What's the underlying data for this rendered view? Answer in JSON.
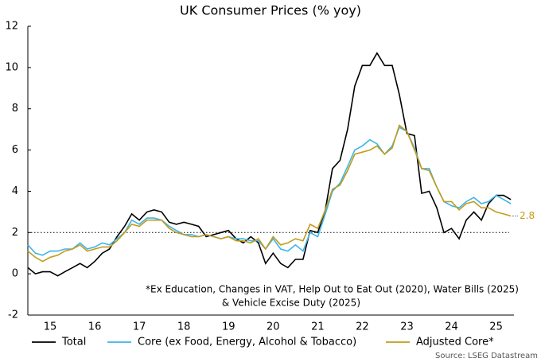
{
  "chart_data": {
    "type": "line",
    "title": "UK Consumer Prices (% yoy)",
    "x": [
      15,
      15.17,
      15.33,
      15.5,
      15.67,
      15.83,
      16,
      16.17,
      16.33,
      16.5,
      16.67,
      16.83,
      17,
      17.17,
      17.33,
      17.5,
      17.67,
      17.83,
      18,
      18.17,
      18.33,
      18.5,
      18.67,
      18.83,
      19,
      19.17,
      19.33,
      19.5,
      19.67,
      19.83,
      20,
      20.17,
      20.33,
      20.5,
      20.67,
      20.83,
      21,
      21.17,
      21.33,
      21.5,
      21.67,
      21.83,
      22,
      22.17,
      22.33,
      22.5,
      22.67,
      22.83,
      23,
      23.17,
      23.33,
      23.5,
      23.67,
      23.83,
      24,
      24.17,
      24.33,
      24.5,
      24.67,
      24.83,
      25,
      25.17,
      25.33,
      25.5,
      25.67,
      25.83
    ],
    "series": [
      {
        "name": "Total",
        "color": "#000000",
        "values": [
          0.3,
          0.0,
          0.1,
          0.1,
          -0.1,
          0.1,
          0.3,
          0.5,
          0.3,
          0.6,
          1.0,
          1.2,
          1.8,
          2.3,
          2.9,
          2.6,
          3.0,
          3.1,
          3.0,
          2.5,
          2.4,
          2.5,
          2.4,
          2.3,
          1.8,
          1.9,
          2.0,
          2.1,
          1.7,
          1.5,
          1.8,
          1.5,
          0.5,
          1.0,
          0.5,
          0.3,
          0.7,
          0.7,
          2.1,
          2.0,
          3.1,
          5.1,
          5.5,
          7.0,
          9.1,
          10.1,
          10.1,
          10.7,
          10.1,
          10.1,
          8.7,
          6.8,
          6.7,
          3.9,
          4.0,
          3.2,
          2.0,
          2.2,
          1.7,
          2.6,
          3.0,
          2.6,
          3.4,
          3.8,
          3.8,
          3.6
        ]
      },
      {
        "name": "Core (ex Food, Energy, Alcohol & Tobacco)",
        "color": "#3db5e8",
        "values": [
          1.4,
          1.0,
          0.9,
          1.1,
          1.1,
          1.2,
          1.2,
          1.5,
          1.2,
          1.3,
          1.5,
          1.4,
          1.7,
          2.0,
          2.6,
          2.4,
          2.7,
          2.7,
          2.6,
          2.3,
          2.1,
          1.9,
          1.9,
          1.8,
          1.9,
          1.8,
          1.7,
          1.8,
          1.7,
          1.7,
          1.6,
          1.6,
          1.2,
          1.7,
          1.2,
          1.1,
          1.4,
          1.1,
          2.0,
          1.8,
          2.9,
          4.0,
          4.4,
          5.2,
          6.0,
          6.2,
          6.5,
          6.3,
          5.8,
          6.2,
          7.1,
          6.9,
          6.1,
          5.1,
          5.1,
          4.2,
          3.5,
          3.3,
          3.2,
          3.5,
          3.7,
          3.4,
          3.5,
          3.8,
          3.6,
          3.4
        ]
      },
      {
        "name": "Adjusted Core*",
        "color": "#c39b1c",
        "values": [
          1.1,
          0.8,
          0.6,
          0.8,
          0.9,
          1.1,
          1.2,
          1.4,
          1.1,
          1.2,
          1.3,
          1.3,
          1.6,
          2.0,
          2.4,
          2.3,
          2.6,
          2.6,
          2.6,
          2.2,
          2.0,
          1.9,
          1.8,
          1.8,
          1.9,
          1.8,
          1.7,
          1.8,
          1.6,
          1.6,
          1.5,
          1.7,
          1.2,
          1.8,
          1.4,
          1.5,
          1.7,
          1.6,
          2.4,
          2.2,
          3.1,
          4.1,
          4.3,
          5.0,
          5.8,
          5.9,
          6.0,
          6.2,
          5.8,
          6.1,
          7.2,
          6.9,
          6.0,
          5.1,
          5.0,
          4.2,
          3.5,
          3.5,
          3.1,
          3.4,
          3.5,
          3.2,
          3.2,
          3.0,
          2.9,
          2.8
        ]
      }
    ],
    "xlim": [
      15,
      25.9
    ],
    "ylim": [
      -2,
      12
    ],
    "yticks": [
      -2,
      0,
      2,
      4,
      6,
      8,
      10,
      12
    ],
    "xticks": [
      {
        "value": 15.5,
        "label": "15"
      },
      {
        "value": 16.5,
        "label": "16"
      },
      {
        "value": 17.5,
        "label": "17"
      },
      {
        "value": 18.5,
        "label": "18"
      },
      {
        "value": 19.5,
        "label": "19"
      },
      {
        "value": 20.5,
        "label": "20"
      },
      {
        "value": 21.5,
        "label": "21"
      },
      {
        "value": 22.5,
        "label": "22"
      },
      {
        "value": 23.5,
        "label": "23"
      },
      {
        "value": 24.5,
        "label": "24"
      },
      {
        "value": 25.5,
        "label": "25"
      }
    ],
    "hline": 2,
    "note": [
      "*Ex Education, Changes in VAT, Help Out to Eat Out (2020), Water Bills (2025)",
      "& Vehicle Excise Duty (2025)"
    ],
    "source": "Source: LSEG Datastream"
  }
}
